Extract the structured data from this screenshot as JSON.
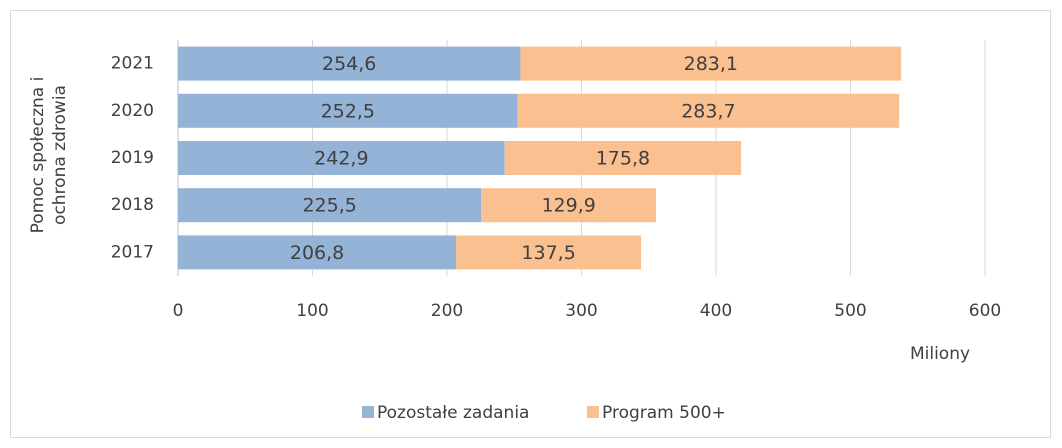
{
  "chart_data": {
    "type": "stacked-barh",
    "y_label": [
      "Pomoc społeczna i",
      "ochrona zdrowia"
    ],
    "x_label": "Miliony",
    "categories": [
      "2021",
      "2020",
      "2019",
      "2018",
      "2017"
    ],
    "series": [
      {
        "name": "Pozostałe zadania",
        "color": "#95b3d7",
        "values": [
          254.6,
          252.5,
          242.9,
          225.5,
          206.8
        ],
        "value_labels": [
          "254,6",
          "252,5",
          "242,9",
          "225,5",
          "206,8"
        ]
      },
      {
        "name": "Program 500+",
        "color": "#fac090",
        "values": [
          283.1,
          283.7,
          175.8,
          129.9,
          137.5
        ],
        "value_labels": [
          "283,1",
          "283,7",
          "175,8",
          "129,9",
          "137,5"
        ]
      }
    ],
    "xlim": [
      0,
      600
    ],
    "xticks": [
      0,
      100,
      200,
      300,
      400,
      500,
      600
    ],
    "grid": true,
    "legend": "bottom"
  }
}
